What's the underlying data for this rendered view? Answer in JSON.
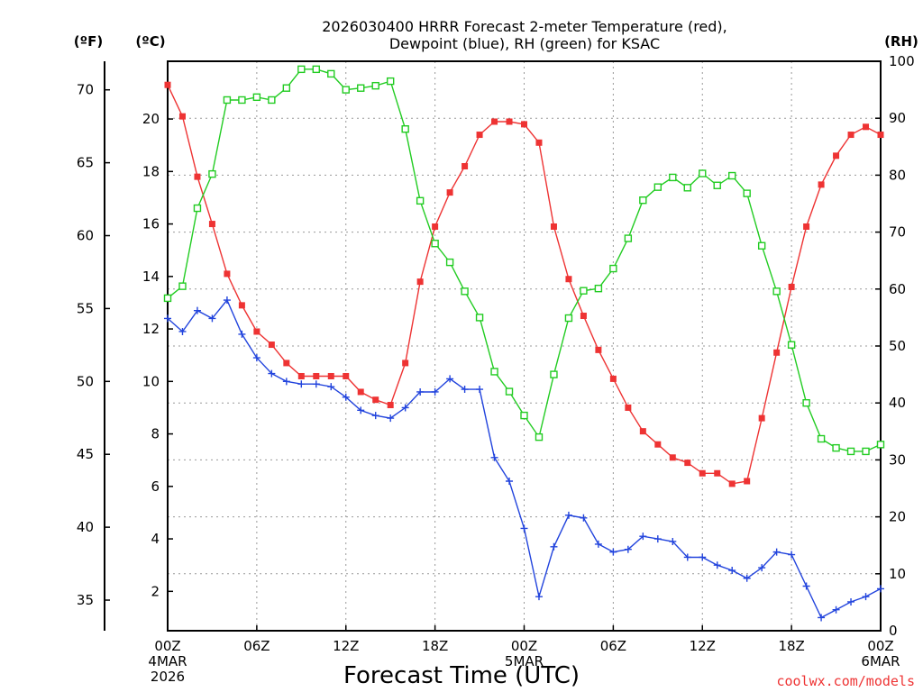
{
  "chart_data": {
    "type": "line",
    "title_lines": [
      "2026030400 HRRR Forecast 2-meter Temperature (red),",
      "Dewpoint (blue), RH (green) for KSAC"
    ],
    "units": {
      "f": "(ºF)",
      "c": "(ºC)",
      "rh": "(RH)"
    },
    "xlabel": "Forecast Time (UTC)",
    "credit": "coolwx.com/models",
    "x_hours": [
      0,
      1,
      2,
      3,
      4,
      5,
      6,
      7,
      8,
      9,
      10,
      11,
      12,
      13,
      14,
      15,
      16,
      17,
      18,
      19,
      20,
      21,
      22,
      23,
      24,
      25,
      26,
      27,
      28,
      29,
      30,
      31,
      32,
      33,
      34,
      35,
      36,
      37,
      38,
      39,
      40,
      41,
      42,
      43,
      44,
      45,
      46,
      47,
      48
    ],
    "xlim": [
      0,
      48
    ],
    "x_ticks": [
      {
        "hour": 0,
        "lines": [
          "00Z",
          "4MAR",
          "2026"
        ]
      },
      {
        "hour": 6,
        "lines": [
          "06Z"
        ]
      },
      {
        "hour": 12,
        "lines": [
          "12Z"
        ]
      },
      {
        "hour": 18,
        "lines": [
          "18Z"
        ]
      },
      {
        "hour": 24,
        "lines": [
          "00Z",
          "5MAR"
        ]
      },
      {
        "hour": 30,
        "lines": [
          "06Z"
        ]
      },
      {
        "hour": 36,
        "lines": [
          "12Z"
        ]
      },
      {
        "hour": 42,
        "lines": [
          "18Z"
        ]
      },
      {
        "hour": 48,
        "lines": [
          "00Z",
          "6MAR"
        ]
      }
    ],
    "y_celsius": {
      "lim": [
        0.5,
        22.2
      ],
      "ticks": [
        2,
        4,
        6,
        8,
        10,
        12,
        14,
        16,
        18,
        20
      ]
    },
    "y_fahrenheit": {
      "ticks": [
        35,
        40,
        45,
        50,
        55,
        60,
        65,
        70
      ]
    },
    "y_rh": {
      "lim": [
        0,
        100
      ],
      "ticks": [
        0,
        10,
        20,
        30,
        40,
        50,
        60,
        70,
        80,
        90,
        100
      ]
    },
    "grid": true,
    "series": [
      {
        "name": "Temperature",
        "color": "#ee3333",
        "marker": "filled-square",
        "axis": "celsius",
        "values": [
          21.3,
          20.1,
          17.8,
          16.0,
          14.1,
          12.9,
          11.9,
          11.4,
          10.7,
          10.2,
          10.2,
          10.2,
          10.2,
          9.6,
          9.3,
          9.1,
          10.7,
          13.8,
          15.9,
          17.2,
          18.2,
          19.4,
          19.9,
          19.9,
          19.8,
          19.1,
          15.9,
          13.9,
          12.5,
          11.2,
          10.1,
          9.0,
          8.1,
          7.6,
          7.1,
          6.9,
          6.5,
          6.5,
          6.1,
          6.2,
          8.6,
          11.1,
          13.6,
          15.9,
          17.5,
          18.6,
          19.4,
          19.7,
          19.4
        ]
      },
      {
        "name": "Dewpoint",
        "color": "#2244dd",
        "marker": "plus",
        "axis": "celsius",
        "values": [
          12.4,
          11.9,
          12.7,
          12.4,
          13.1,
          11.8,
          10.9,
          10.3,
          10.0,
          9.9,
          9.9,
          9.8,
          9.4,
          8.9,
          8.7,
          8.6,
          9.0,
          9.6,
          9.6,
          10.1,
          9.7,
          9.7,
          7.1,
          6.2,
          4.4,
          1.8,
          3.7,
          4.9,
          4.8,
          3.8,
          3.5,
          3.6,
          4.1,
          4.0,
          3.9,
          3.3,
          3.3,
          3.0,
          2.8,
          2.5,
          2.9,
          3.5,
          3.4,
          2.2,
          1.0,
          1.3,
          1.6,
          1.8,
          2.1
        ]
      },
      {
        "name": "RH",
        "color": "#22cc22",
        "marker": "open-square",
        "axis": "rh",
        "values": [
          58.4,
          60.5,
          74.2,
          80.2,
          93.2,
          93.2,
          93.7,
          93.2,
          95.3,
          98.6,
          98.6,
          97.8,
          95.0,
          95.3,
          95.7,
          96.5,
          88.1,
          75.5,
          68.0,
          64.7,
          59.6,
          55.0,
          45.5,
          42.0,
          37.8,
          34.0,
          45.0,
          54.9,
          59.7,
          60.1,
          63.6,
          68.9,
          75.6,
          77.9,
          79.6,
          77.8,
          80.3,
          78.2,
          79.9,
          76.8,
          67.6,
          59.6,
          50.2,
          40.0,
          33.7,
          32.1,
          31.5,
          31.5,
          32.7
        ]
      }
    ]
  }
}
